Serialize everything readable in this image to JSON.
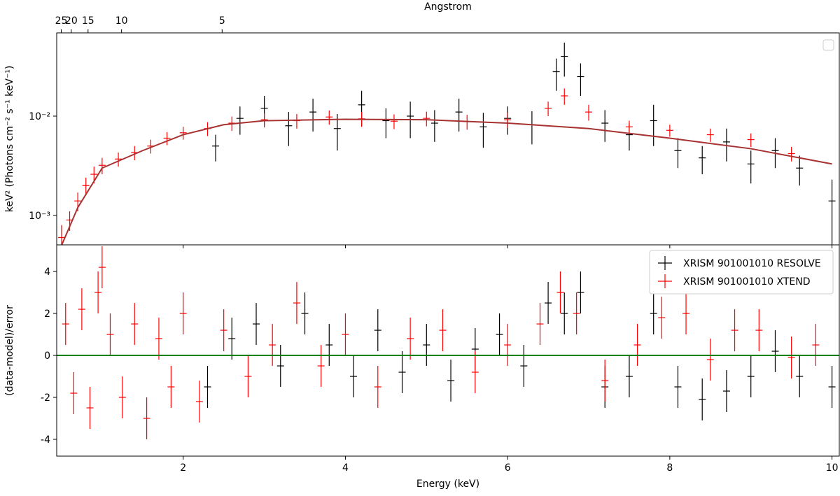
{
  "chart_data": [
    {
      "type": "errorbar",
      "log_y": true,
      "x2label": "Angstrom",
      "ylabel": "keV² (Photons cm⁻² s⁻¹ keV⁻¹)",
      "xlim": [
        0.44,
        10.09
      ],
      "ylim": [
        0.000506,
        0.0689
      ],
      "xticks": [
        2,
        4,
        6,
        8,
        10
      ],
      "yticks": [
        {
          "value": 0.001,
          "label": "10⁻³"
        },
        {
          "value": 0.01,
          "label": "10⁻²"
        }
      ],
      "x2ticks": [
        25,
        20,
        15,
        10,
        5
      ],
      "series": [
        {
          "color": "#000000",
          "x": [
            2.4,
            2.7,
            3.0,
            3.3,
            3.6,
            3.9,
            4.2,
            4.5,
            4.8,
            5.1,
            5.4,
            5.7,
            6.0,
            6.3,
            6.6,
            6.7,
            6.9,
            7.2,
            7.5,
            7.8,
            8.1,
            8.4,
            8.7,
            9.0,
            9.3,
            9.6,
            10.0
          ],
          "values": [
            0.005,
            0.0095,
            0.012,
            0.008,
            0.011,
            0.0075,
            0.013,
            0.009,
            0.01,
            0.0085,
            0.011,
            0.0078,
            0.0095,
            0.0082,
            0.028,
            0.04,
            0.025,
            0.0085,
            0.0065,
            0.009,
            0.0045,
            0.0038,
            0.0055,
            0.0033,
            0.0045,
            0.003,
            0.0014
          ],
          "errors": [
            0.0015,
            0.003,
            0.004,
            0.003,
            0.004,
            0.003,
            0.005,
            0.003,
            0.004,
            0.003,
            0.004,
            0.003,
            0.003,
            0.003,
            0.01,
            0.015,
            0.009,
            0.003,
            0.002,
            0.004,
            0.0015,
            0.0012,
            0.002,
            0.0012,
            0.0015,
            0.001,
            0.0009
          ]
        },
        {
          "color": "#ff0000",
          "x": [
            0.5,
            0.6,
            0.7,
            0.8,
            0.9,
            1.0,
            1.2,
            1.4,
            1.6,
            1.8,
            2.0,
            2.3,
            2.6,
            3.0,
            3.4,
            3.8,
            4.2,
            4.6,
            5.0,
            5.5,
            6.0,
            6.5,
            6.7,
            7.0,
            7.5,
            8.0,
            8.5,
            9.0,
            9.5
          ],
          "values": [
            0.0006,
            0.0009,
            0.0014,
            0.002,
            0.0026,
            0.0032,
            0.0037,
            0.0043,
            0.005,
            0.006,
            0.0068,
            0.0075,
            0.0085,
            0.0092,
            0.009,
            0.0098,
            0.0094,
            0.0089,
            0.0095,
            0.0088,
            0.0092,
            0.012,
            0.016,
            0.011,
            0.0078,
            0.0072,
            0.0065,
            0.0058,
            0.0042
          ],
          "errors": [
            0.0002,
            0.0002,
            0.0003,
            0.0004,
            0.0005,
            0.0006,
            0.0006,
            0.0007,
            0.0008,
            0.0009,
            0.001,
            0.0012,
            0.0014,
            0.0015,
            0.0015,
            0.0016,
            0.0016,
            0.0015,
            0.0016,
            0.0015,
            0.0016,
            0.002,
            0.003,
            0.002,
            0.0012,
            0.001,
            0.001,
            0.0009,
            0.0007
          ]
        }
      ],
      "model": {
        "color": "#a83232",
        "x": [
          0.5,
          0.7,
          1.0,
          1.5,
          2.0,
          2.5,
          3.0,
          4.0,
          5.0,
          6.0,
          7.0,
          8.0,
          9.0,
          10.0
        ],
        "values": [
          0.0005,
          0.0012,
          0.003,
          0.0045,
          0.0065,
          0.0082,
          0.009,
          0.0093,
          0.0092,
          0.0085,
          0.0075,
          0.006,
          0.0047,
          0.0033
        ]
      }
    },
    {
      "type": "errorbar",
      "log_y": false,
      "xlabel": "Energy (keV)",
      "ylabel": "(data-model)/error",
      "xlim": [
        0.44,
        10.09
      ],
      "ylim": [
        -4.8,
        5.27
      ],
      "xticks": [
        2,
        4,
        6,
        8,
        10
      ],
      "yticks": [
        -4,
        -2,
        0,
        2,
        4
      ],
      "legend": "upper right",
      "hline": {
        "value": 0,
        "color": "#008000"
      },
      "series": [
        {
          "name": "XRISM 901001010 RESOLVE",
          "color": "#000000",
          "x": [
            2.3,
            2.6,
            2.9,
            3.2,
            3.5,
            3.8,
            4.1,
            4.4,
            4.7,
            5.0,
            5.3,
            5.6,
            5.9,
            6.2,
            6.5,
            6.7,
            6.9,
            7.2,
            7.5,
            7.8,
            8.1,
            8.4,
            8.7,
            9.0,
            9.3,
            9.6,
            10.0
          ],
          "values": [
            -1.5,
            0.8,
            1.5,
            -0.5,
            2.0,
            0.5,
            -1.0,
            1.2,
            -0.8,
            0.5,
            -1.2,
            0.3,
            1.0,
            -0.5,
            2.5,
            2.0,
            3.0,
            -1.5,
            -1.0,
            2.0,
            -1.5,
            -2.1,
            -1.7,
            -1.0,
            0.2,
            -1.0,
            -1.5
          ],
          "errors": [
            1,
            1,
            1,
            1,
            1,
            1,
            1,
            1,
            1,
            1,
            1,
            1,
            1,
            1,
            1,
            1,
            1,
            1,
            1,
            1,
            1,
            1,
            1,
            1,
            1,
            1,
            1
          ]
        },
        {
          "name": "XRISM 901001010 XTEND",
          "color": "#ff0000",
          "x": [
            0.55,
            0.65,
            0.75,
            0.85,
            0.95,
            1.0,
            1.1,
            1.25,
            1.4,
            1.55,
            1.7,
            1.85,
            2.0,
            2.2,
            2.5,
            2.8,
            3.1,
            3.4,
            3.7,
            4.0,
            4.4,
            4.8,
            5.2,
            5.6,
            6.0,
            6.4,
            6.65,
            6.85,
            7.2,
            7.6,
            7.9,
            8.2,
            8.5,
            8.8,
            9.1,
            9.5,
            9.8
          ],
          "values": [
            1.5,
            -1.8,
            2.2,
            -2.5,
            3.0,
            4.2,
            1.0,
            -2.0,
            1.5,
            -3.0,
            0.8,
            -1.5,
            2.0,
            -2.2,
            1.2,
            -1.0,
            0.5,
            2.5,
            -0.5,
            1.0,
            -1.5,
            0.8,
            1.2,
            -0.8,
            0.5,
            1.5,
            3.0,
            2.0,
            -1.2,
            0.5,
            1.8,
            2.0,
            -0.2,
            1.2,
            1.2,
            -0.1,
            0.5
          ],
          "errors": [
            1,
            1,
            1,
            1,
            1,
            1,
            1,
            1,
            1,
            1,
            1,
            1,
            1,
            1,
            1,
            1,
            1,
            1,
            1,
            1,
            1,
            1,
            1,
            1,
            1,
            1,
            1,
            1,
            1,
            1,
            1,
            1,
            1,
            1,
            1,
            1,
            1
          ]
        }
      ]
    }
  ]
}
